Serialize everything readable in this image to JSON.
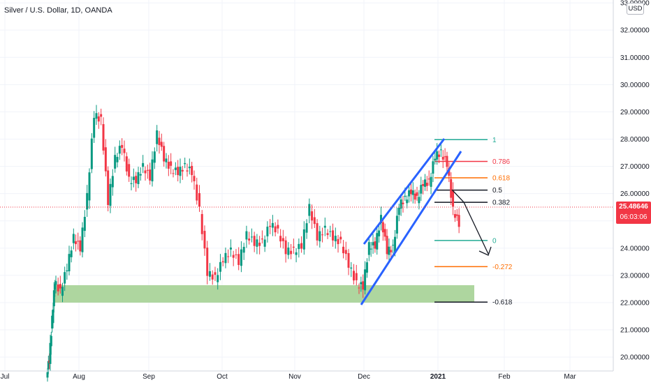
{
  "header": {
    "title": "Silver / U.S. Dollar, 1D, OANDA"
  },
  "price_axis": {
    "currency_badge": "USD",
    "ticks": [
      "20.00000",
      "21.00000",
      "22.00000",
      "23.00000",
      "24.00000",
      "25.00000",
      "26.00000",
      "27.00000",
      "28.00000",
      "29.00000",
      "30.00000",
      "31.00000",
      "32.00000",
      "33.00000"
    ],
    "tick_values": [
      20,
      21,
      22,
      23,
      24,
      25,
      26,
      27,
      28,
      29,
      30,
      31,
      32,
      33
    ],
    "last_price": "25.48646",
    "countdown": "06:03:06"
  },
  "time_axis": {
    "labels": [
      "Jul",
      "Aug",
      "Sep",
      "Oct",
      "Nov",
      "Dec",
      "2021",
      "Feb",
      "Mar"
    ]
  },
  "fib_levels": [
    {
      "label": "1",
      "value": 27.98,
      "color": "#22ab94"
    },
    {
      "label": "0.786",
      "value": 27.18,
      "color": "#f23645"
    },
    {
      "label": "0.618",
      "value": 26.58,
      "color": "#ff6d00"
    },
    {
      "label": "0.5",
      "value": 26.13,
      "color": "#131722"
    },
    {
      "label": "0.382",
      "value": 25.68,
      "color": "#131722"
    },
    {
      "label": "0",
      "value": 24.28,
      "color": "#22ab94"
    },
    {
      "label": "-0.272",
      "value": 23.32,
      "color": "#ff6d00"
    },
    {
      "label": "-0.618",
      "value": 22.02,
      "color": "#131722"
    }
  ],
  "colors": {
    "up": "#089981",
    "down": "#f23645",
    "channel": "#2962ff",
    "zone": "#a5d295",
    "price_badge": "#f23645",
    "grid": "#f0f3fa",
    "axis_text": "#131722"
  },
  "chart_data": {
    "type": "candlestick",
    "title": "Silver / U.S. Dollar, 1D, OANDA",
    "ylim": [
      19.7,
      33.0
    ],
    "x_axis_labels": [
      "Jul",
      "Aug",
      "Sep",
      "Oct",
      "Nov",
      "Dec",
      "2021",
      "Feb",
      "Mar"
    ],
    "last_price": 25.48646,
    "close_series": [
      {
        "x": "Jul 21",
        "y": 19.9
      },
      {
        "x": "Jul 22",
        "y": 21.4
      },
      {
        "x": "Jul 23",
        "y": 22.8
      },
      {
        "x": "Jul 27",
        "y": 22.4
      },
      {
        "x": "Jul 29",
        "y": 23.3
      },
      {
        "x": "Jul 31",
        "y": 24.4
      },
      {
        "x": "Aug 3",
        "y": 24.0
      },
      {
        "x": "Aug 5",
        "y": 25.9
      },
      {
        "x": "Aug 7",
        "y": 28.9
      },
      {
        "x": "Aug 10",
        "y": 28.7
      },
      {
        "x": "Aug 11",
        "y": 25.7
      },
      {
        "x": "Aug 13",
        "y": 27.3
      },
      {
        "x": "Aug 17",
        "y": 27.8
      },
      {
        "x": "Aug 19",
        "y": 26.5
      },
      {
        "x": "Aug 21",
        "y": 26.5
      },
      {
        "x": "Aug 25",
        "y": 27.0
      },
      {
        "x": "Aug 27",
        "y": 26.6
      },
      {
        "x": "Aug 31",
        "y": 28.2
      },
      {
        "x": "Sep 3",
        "y": 27.3
      },
      {
        "x": "Sep 7",
        "y": 26.9
      },
      {
        "x": "Sep 10",
        "y": 26.8
      },
      {
        "x": "Sep 14",
        "y": 27.0
      },
      {
        "x": "Sep 17",
        "y": 26.8
      },
      {
        "x": "Sep 21",
        "y": 25.4
      },
      {
        "x": "Sep 23",
        "y": 23.1
      },
      {
        "x": "Sep 25",
        "y": 22.9
      },
      {
        "x": "Sep 29",
        "y": 23.6
      },
      {
        "x": "Oct 2",
        "y": 23.9
      },
      {
        "x": "Oct 6",
        "y": 23.5
      },
      {
        "x": "Oct 9",
        "y": 24.5
      },
      {
        "x": "Oct 13",
        "y": 24.2
      },
      {
        "x": "Oct 16",
        "y": 24.2
      },
      {
        "x": "Oct 20",
        "y": 24.9
      },
      {
        "x": "Oct 23",
        "y": 24.6
      },
      {
        "x": "Oct 27",
        "y": 23.9
      },
      {
        "x": "Oct 30",
        "y": 23.9
      },
      {
        "x": "Nov 3",
        "y": 24.1
      },
      {
        "x": "Nov 6",
        "y": 25.5
      },
      {
        "x": "Nov 9",
        "y": 24.4
      },
      {
        "x": "Nov 13",
        "y": 24.7
      },
      {
        "x": "Nov 17",
        "y": 24.4
      },
      {
        "x": "Nov 20",
        "y": 24.2
      },
      {
        "x": "Nov 24",
        "y": 23.4
      },
      {
        "x": "Nov 27",
        "y": 22.7
      },
      {
        "x": "Nov 30",
        "y": 22.6
      },
      {
        "x": "Dec 2",
        "y": 24.1
      },
      {
        "x": "Dec 4",
        "y": 24.1
      },
      {
        "x": "Dec 8",
        "y": 25.1
      },
      {
        "x": "Dec 10",
        "y": 23.9
      },
      {
        "x": "Dec 14",
        "y": 24.0
      },
      {
        "x": "Dec 16",
        "y": 25.6
      },
      {
        "x": "Dec 18",
        "y": 25.8
      },
      {
        "x": "Dec 21",
        "y": 26.1
      },
      {
        "x": "Dec 23",
        "y": 25.8
      },
      {
        "x": "Dec 28",
        "y": 26.4
      },
      {
        "x": "Dec 30",
        "y": 26.4
      },
      {
        "x": "Jan 4",
        "y": 27.4
      },
      {
        "x": "Jan 5",
        "y": 27.5
      },
      {
        "x": "Jan 7",
        "y": 27.1
      },
      {
        "x": "Jan 8",
        "y": 25.4
      },
      {
        "x": "Jan 11",
        "y": 24.9
      },
      {
        "x": "Jan 12",
        "y": 25.5
      }
    ]
  }
}
